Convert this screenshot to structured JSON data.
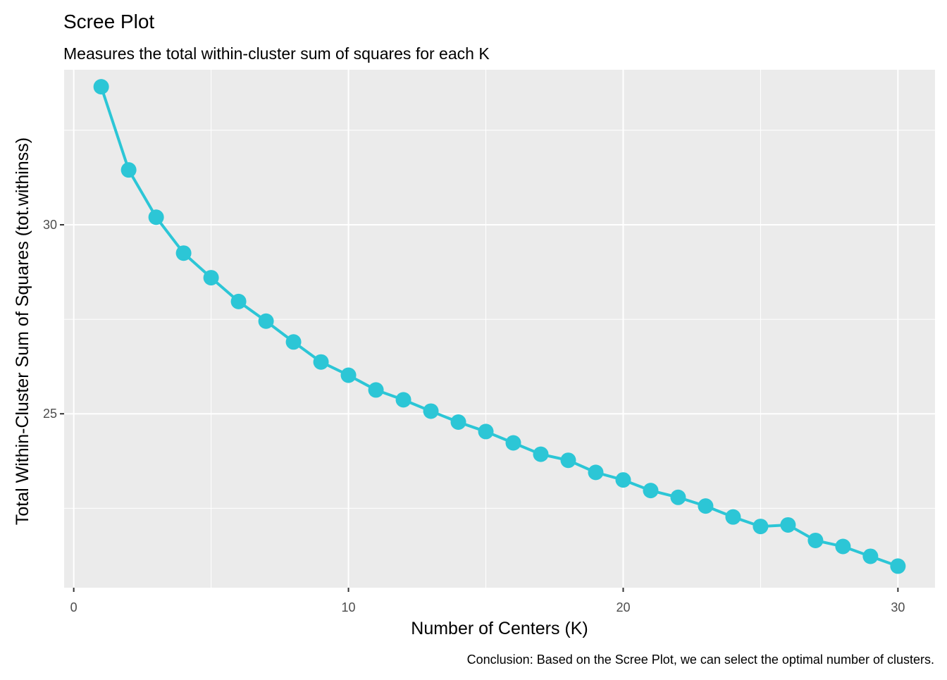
{
  "chart_data": {
    "type": "line",
    "title": "Scree Plot",
    "subtitle": "Measures the total within-cluster sum of squares for each K",
    "caption": "Conclusion: Based on the Scree Plot, we can select the optimal number of clusters.",
    "xlabel": "Number of Centers (K)",
    "ylabel": "Total Within-Cluster Sum of Squares (tot.withinss)",
    "xlim": [
      -0.35,
      31.35
    ],
    "ylim": [
      20.4,
      34.1
    ],
    "x_ticks": [
      0,
      10,
      20,
      30
    ],
    "x_tick_labels": [
      "0",
      "10",
      "20",
      "30"
    ],
    "y_ticks": [
      25,
      30
    ],
    "y_tick_labels": [
      "25",
      "30"
    ],
    "x_minor_ticks": [
      5,
      15,
      25
    ],
    "y_minor_ticks": [
      22.5,
      27.5,
      32.5
    ],
    "grid": true,
    "legend": "none",
    "series": [
      {
        "color": "#2CC6D6",
        "x": [
          1,
          2,
          3,
          4,
          5,
          6,
          7,
          8,
          9,
          10,
          11,
          12,
          13,
          14,
          15,
          16,
          17,
          18,
          19,
          20,
          21,
          22,
          23,
          24,
          25,
          26,
          27,
          28,
          29,
          30
        ],
        "y": [
          33.65,
          31.45,
          30.2,
          29.25,
          28.6,
          27.97,
          27.45,
          26.9,
          26.37,
          26.02,
          25.63,
          25.37,
          25.07,
          24.78,
          24.53,
          24.23,
          23.93,
          23.77,
          23.45,
          23.25,
          22.97,
          22.79,
          22.56,
          22.27,
          22.02,
          22.06,
          21.65,
          21.49,
          21.23,
          20.97
        ]
      }
    ]
  }
}
